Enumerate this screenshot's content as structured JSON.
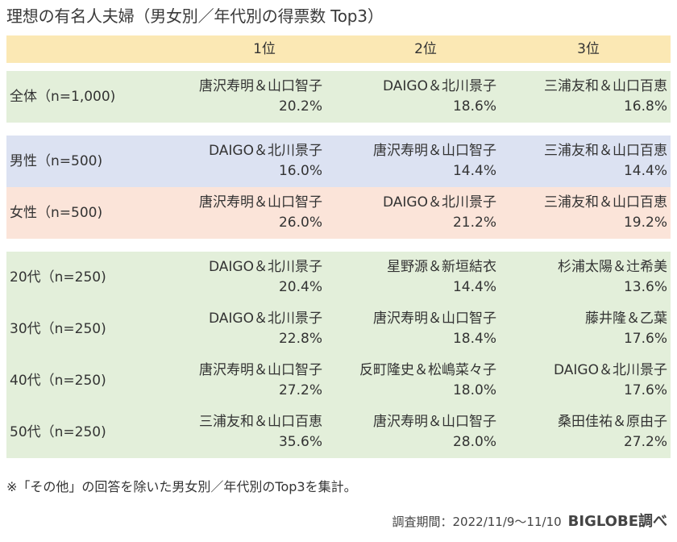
{
  "title": "理想の有名人夫婦（男女別／年代別の得票数 Top3）",
  "columns": [
    "1位",
    "2位",
    "3位"
  ],
  "groups": [
    {
      "label": "全体（n=1,000)",
      "color": "#e3efda",
      "ranks": [
        [
          "唐沢寿明＆山口智子",
          "20.2%"
        ],
        [
          "DAIGO＆北川景子",
          "18.6%"
        ],
        [
          "三浦友和＆山口百恵",
          "16.8%"
        ]
      ]
    },
    {
      "label": "男性（n=500)",
      "color": "#dce2f2",
      "ranks": [
        [
          "DAIGO＆北川景子",
          "16.0%"
        ],
        [
          "唐沢寿明＆山口智子",
          "14.4%"
        ],
        [
          "三浦友和＆山口百恵",
          "14.4%"
        ]
      ]
    },
    {
      "label": "女性（n=500)",
      "color": "#fbe4d9",
      "ranks": [
        [
          "唐沢寿明＆山口智子",
          "26.0%"
        ],
        [
          "DAIGO＆北川景子",
          "21.2%"
        ],
        [
          "三浦友和＆山口百恵",
          "19.2%"
        ]
      ]
    },
    {
      "label": "20代（n=250)",
      "color": "#e3efda",
      "ranks": [
        [
          "DAIGO＆北川景子",
          "20.4%"
        ],
        [
          "星野源＆新垣結衣",
          "14.4%"
        ],
        [
          "杉浦太陽＆辻希美",
          "13.6%"
        ]
      ]
    },
    {
      "label": "30代（n=250)",
      "color": "#e3efda",
      "ranks": [
        [
          "DAIGO＆北川景子",
          "22.8%"
        ],
        [
          "唐沢寿明＆山口智子",
          "18.4%"
        ],
        [
          "藤井隆＆乙葉",
          "17.6%"
        ]
      ]
    },
    {
      "label": "40代（n=250)",
      "color": "#e3efda",
      "ranks": [
        [
          "唐沢寿明＆山口智子",
          "27.2%"
        ],
        [
          "反町隆史＆松嶋菜々子",
          "18.0%"
        ],
        [
          "DAIGO＆北川景子",
          "17.6%"
        ]
      ]
    },
    {
      "label": "50代（n=250)",
      "color": "#e3efda",
      "ranks": [
        [
          "三浦友和＆山口百恵",
          "35.6%"
        ],
        [
          "唐沢寿明＆山口智子",
          "28.0%"
        ],
        [
          "桑田佳祐＆原由子",
          "27.2%"
        ]
      ]
    }
  ],
  "note": "※「その他」の回答を除いた男女別／年代別のTop3を集計。",
  "period": "調査期間：2022/11/9～11/10",
  "brand": "BIGLOBE調べ",
  "colors": {
    "header": "#fbe8b4",
    "green": "#e3efda",
    "blue": "#dce2f2",
    "pink": "#fbe4d9"
  },
  "chart_data": {
    "type": "table",
    "title": "理想の有名人夫婦（男女別／年代別の得票数 Top3）",
    "columns": [
      "1位",
      "2位",
      "3位"
    ],
    "rows": [
      {
        "group": "全体（n=1,000)",
        "values": [
          {
            "name": "唐沢寿明＆山口智子",
            "pct": 20.2
          },
          {
            "name": "DAIGO＆北川景子",
            "pct": 18.6
          },
          {
            "name": "三浦友和＆山口百恵",
            "pct": 16.8
          }
        ]
      },
      {
        "group": "男性（n=500)",
        "values": [
          {
            "name": "DAIGO＆北川景子",
            "pct": 16.0
          },
          {
            "name": "唐沢寿明＆山口智子",
            "pct": 14.4
          },
          {
            "name": "三浦友和＆山口百恵",
            "pct": 14.4
          }
        ]
      },
      {
        "group": "女性（n=500)",
        "values": [
          {
            "name": "唐沢寿明＆山口智子",
            "pct": 26.0
          },
          {
            "name": "DAIGO＆北川景子",
            "pct": 21.2
          },
          {
            "name": "三浦友和＆山口百恵",
            "pct": 19.2
          }
        ]
      },
      {
        "group": "20代（n=250)",
        "values": [
          {
            "name": "DAIGO＆北川景子",
            "pct": 20.4
          },
          {
            "name": "星野源＆新垣結衣",
            "pct": 14.4
          },
          {
            "name": "杉浦太陽＆辻希美",
            "pct": 13.6
          }
        ]
      },
      {
        "group": "30代（n=250)",
        "values": [
          {
            "name": "DAIGO＆北川景子",
            "pct": 22.8
          },
          {
            "name": "唐沢寿明＆山口智子",
            "pct": 18.4
          },
          {
            "name": "藤井隆＆乙葉",
            "pct": 17.6
          }
        ]
      },
      {
        "group": "40代（n=250)",
        "values": [
          {
            "name": "唐沢寿明＆山口智子",
            "pct": 27.2
          },
          {
            "name": "反町隆史＆松嶋菜々子",
            "pct": 18.0
          },
          {
            "name": "DAIGO＆北川景子",
            "pct": 17.6
          }
        ]
      },
      {
        "group": "50代（n=250)",
        "values": [
          {
            "name": "三浦友和＆山口百恵",
            "pct": 35.6
          },
          {
            "name": "唐沢寿明＆山口智子",
            "pct": 28.0
          },
          {
            "name": "桑田佳祐＆原由子",
            "pct": 27.2
          }
        ]
      }
    ]
  }
}
